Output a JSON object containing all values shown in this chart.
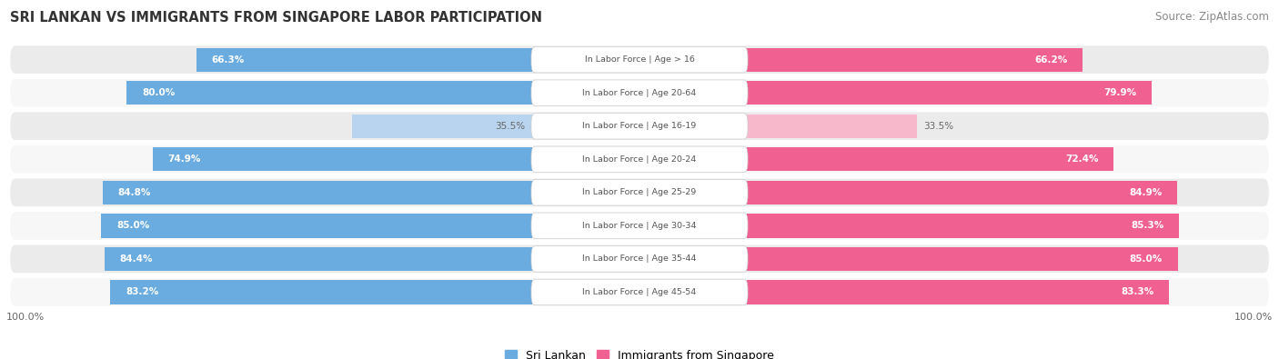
{
  "title": "SRI LANKAN VS IMMIGRANTS FROM SINGAPORE LABOR PARTICIPATION",
  "source": "Source: ZipAtlas.com",
  "categories": [
    "In Labor Force | Age > 16",
    "In Labor Force | Age 20-64",
    "In Labor Force | Age 16-19",
    "In Labor Force | Age 20-24",
    "In Labor Force | Age 25-29",
    "In Labor Force | Age 30-34",
    "In Labor Force | Age 35-44",
    "In Labor Force | Age 45-54"
  ],
  "sri_lankan": [
    66.3,
    80.0,
    35.5,
    74.9,
    84.8,
    85.0,
    84.4,
    83.2
  ],
  "immigrants": [
    66.2,
    79.9,
    33.5,
    72.4,
    84.9,
    85.3,
    85.0,
    83.3
  ],
  "sri_lankan_color_strong": "#6aabe0",
  "sri_lankan_color_light": "#b8d4ee",
  "immigrants_color_strong": "#f06090",
  "immigrants_color_light": "#f8b8cc",
  "row_bg_even": "#ebebeb",
  "row_bg_odd": "#f7f7f7",
  "label_bg": "#ffffff",
  "label_text_color": "#555555",
  "title_color": "#333333",
  "source_color": "#888888",
  "legend_blue": "#6aabe0",
  "legend_pink": "#f06090",
  "max_val": 100.0,
  "threshold_strong": 50.0,
  "bottom_label": "100.0%"
}
